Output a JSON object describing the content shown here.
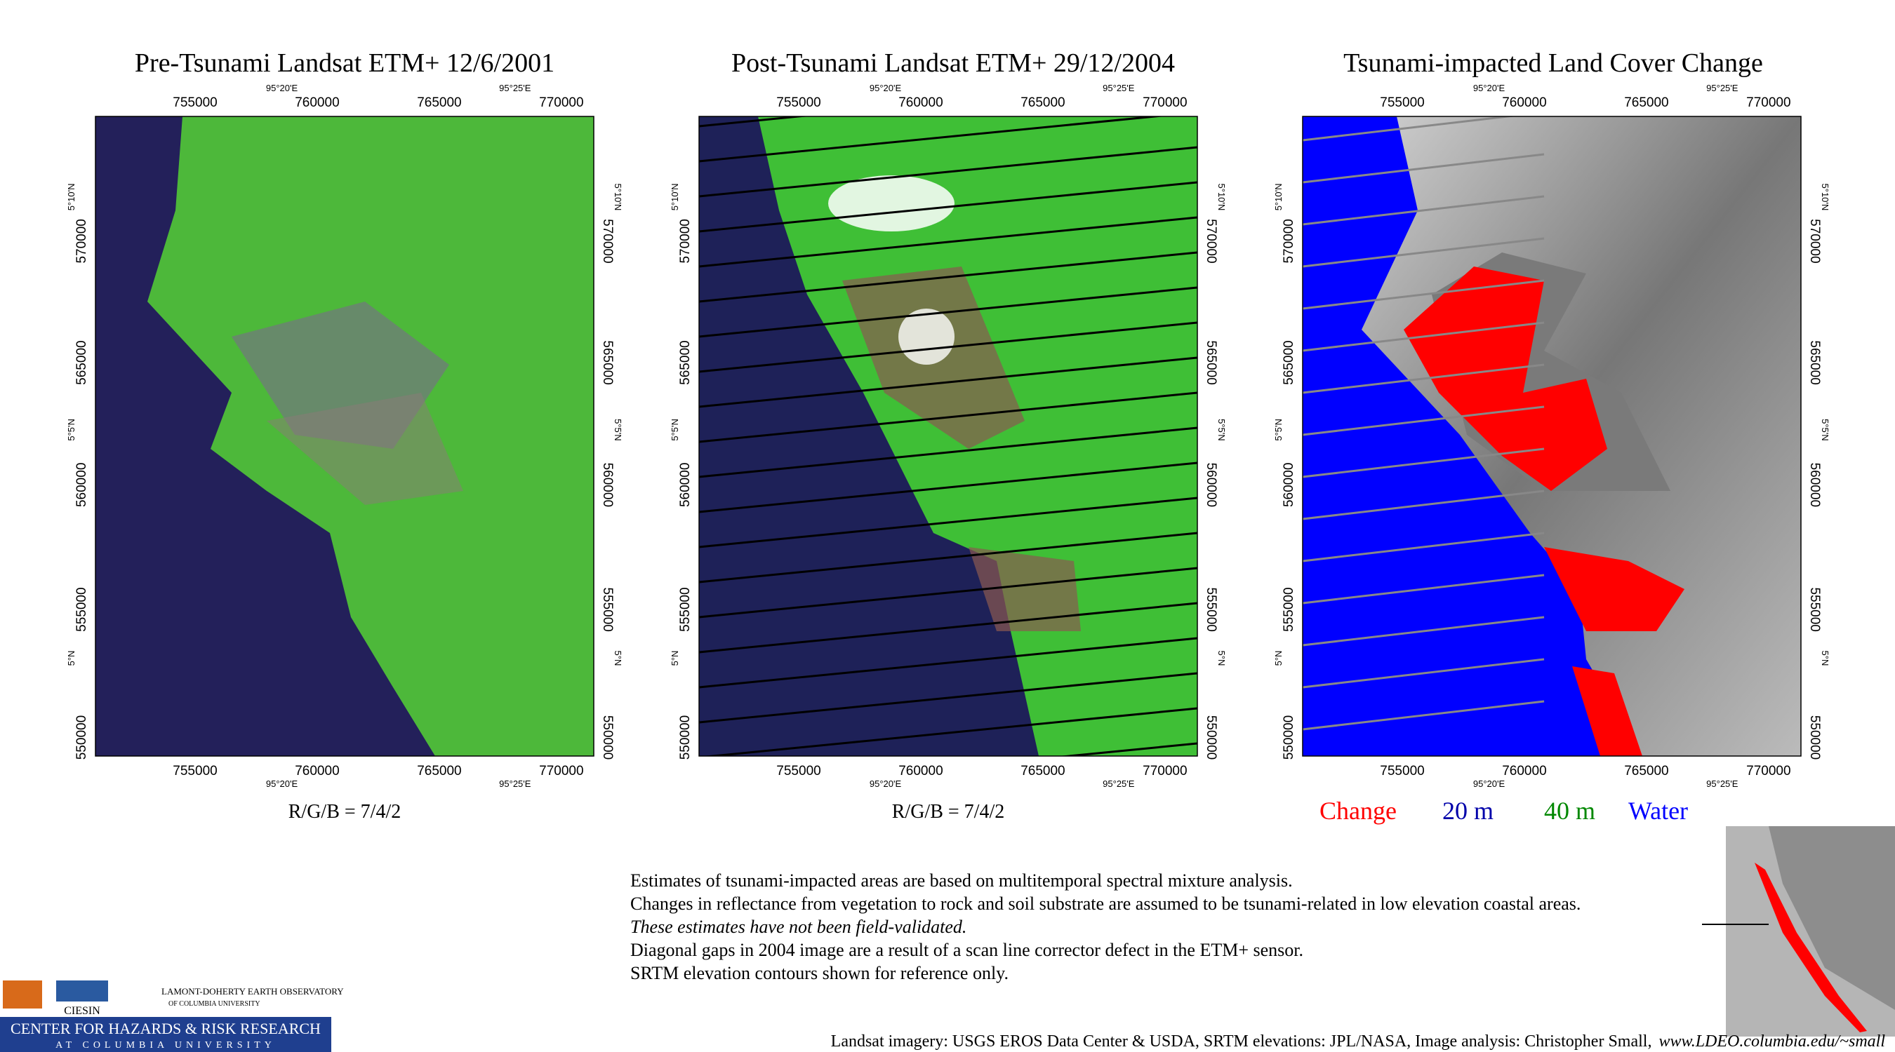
{
  "panels": [
    {
      "title": "Pre-Tsunami  Landsat ETM+    12/6/2001",
      "caption": "R/G/B = 7/4/2"
    },
    {
      "title": "Post-Tsunami  Landsat ETM+  29/12/2004",
      "caption": "R/G/B = 7/4/2"
    },
    {
      "title": "Tsunami-impacted Land Cover Change"
    }
  ],
  "axes": {
    "easting": [
      "755000",
      "760000",
      "765000",
      "770000"
    ],
    "northing": [
      "570000",
      "565000",
      "560000",
      "555000",
      "550000"
    ],
    "longitude": [
      "95°20'E",
      "95°25'E"
    ],
    "latitude": [
      "5°10'N",
      "5°5'N",
      "5°N"
    ]
  },
  "legend": [
    {
      "label": "Change",
      "color": "#ff0000"
    },
    {
      "label": "20 m",
      "color": "#0000aa"
    },
    {
      "label": "40 m",
      "color": "#008800"
    },
    {
      "label": "Water",
      "color": "#0000ff"
    }
  ],
  "notes": [
    "Estimates of tsunami-impacted areas are based on multitemporal spectral mixture analysis.",
    "Changes in reflectance from vegetation to rock and soil substrate are assumed to be tsunami-related in low elevation coastal areas.",
    "These estimates have not been field-validated.",
    "Diagonal gaps in 2004 image are a result of a scan line corrector defect in the ETM+ sensor.",
    "SRTM elevation contours shown for reference only."
  ],
  "credits": {
    "text": "Landsat imagery: USGS EROS Data Center & USDA,  SRTM elevations: JPL/NASA,   Image analysis:  Christopher Small,",
    "url": "www.LDEO.columbia.edu/~small"
  },
  "logos": {
    "ciesin": "CIESIN",
    "ldeo": "LAMONT-DOHERTY EARTH OBSERVATORY",
    "ldeo_sub": "OF COLUMBIA UNIVERSITY",
    "chrr": "CENTER FOR HAZARDS & RISK RESEARCH",
    "chrr_sub": "AT COLUMBIA UNIVERSITY"
  }
}
